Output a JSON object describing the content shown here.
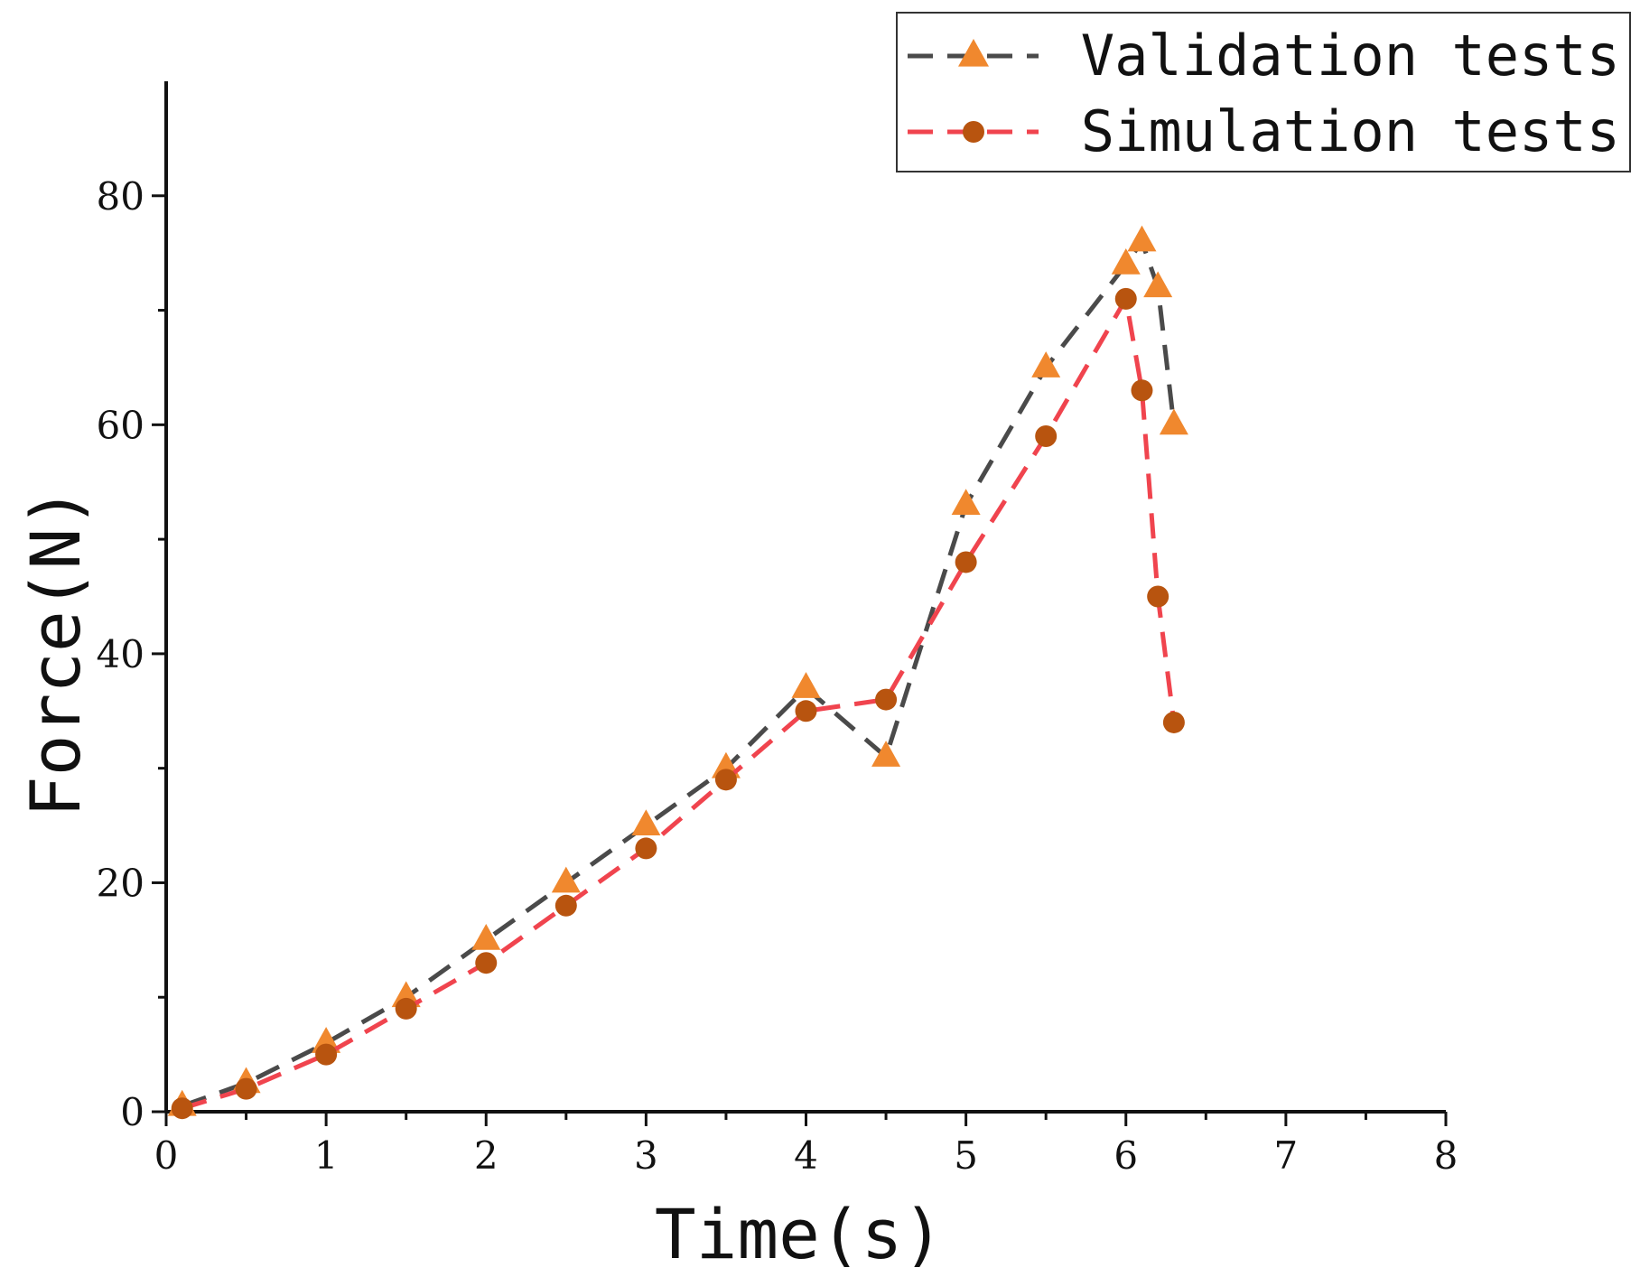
{
  "chart_data": {
    "type": "line",
    "title": "",
    "xlabel": "Time(s)",
    "ylabel": "Force(N)",
    "xlim": [
      0,
      8
    ],
    "ylim": [
      0,
      90
    ],
    "grid": false,
    "legend_position": "top-right",
    "xticks": [
      0,
      1,
      2,
      3,
      4,
      5,
      6,
      7,
      8
    ],
    "xtick_labels": [
      "0",
      "1",
      "2",
      "3",
      "4",
      "5",
      "6",
      "7",
      "8"
    ],
    "yticks": [
      0,
      20,
      40,
      60,
      80
    ],
    "ytick_labels": [
      "0",
      "20",
      "40",
      "60",
      "80"
    ],
    "y_minor_ticks": [
      10,
      30,
      50,
      70
    ],
    "x_minor_ticks": [
      0.5,
      1.5,
      2.5,
      3.5,
      4.5,
      5.5,
      6.5,
      7.5
    ],
    "series": [
      {
        "name": "Validation tests",
        "line_color": "#4a4a4a",
        "marker_color": "#f0882e",
        "marker": "triangle",
        "x": [
          0.1,
          0.5,
          1.0,
          1.5,
          2.0,
          2.5,
          3.0,
          3.5,
          4.0,
          4.5,
          5.0,
          5.5,
          6.0,
          6.1,
          6.2,
          6.3
        ],
        "y": [
          0.5,
          2.5,
          6,
          10,
          15,
          20,
          25,
          30,
          37,
          31,
          53,
          65,
          74,
          76,
          72,
          60
        ]
      },
      {
        "name": "Simulation tests",
        "line_color": "#f0444e",
        "marker_color": "#b8540f",
        "marker": "circle",
        "x": [
          0.1,
          0.5,
          1.0,
          1.5,
          2.0,
          2.5,
          3.0,
          3.5,
          4.0,
          4.5,
          5.0,
          5.5,
          6.0,
          6.1,
          6.2,
          6.3
        ],
        "y": [
          0.3,
          2,
          5,
          9,
          13,
          18,
          23,
          29,
          35,
          36,
          48,
          59,
          71,
          63,
          45,
          34
        ]
      }
    ]
  }
}
